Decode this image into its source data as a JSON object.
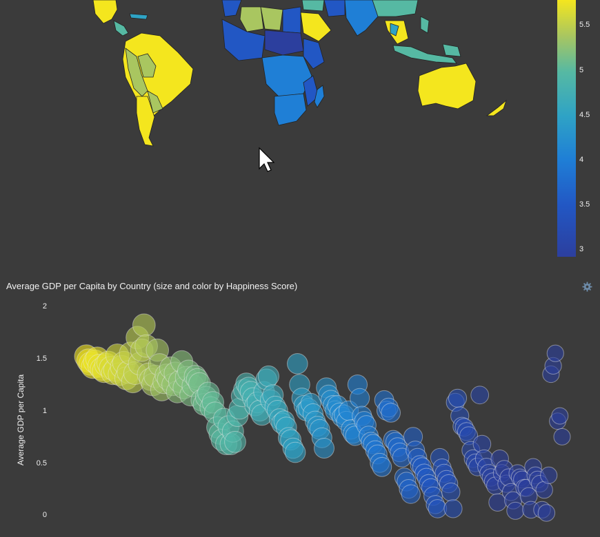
{
  "colorbar": {
    "ticks": [
      "5.5",
      "5",
      "4.5",
      "4",
      "3.5",
      "3"
    ],
    "tick_values": [
      5.5,
      5,
      4.5,
      4,
      3.5,
      3
    ],
    "range": [
      2.9,
      5.85
    ],
    "colors": [
      "#f4e61e",
      "#a9c660",
      "#56b9a3",
      "#2fa3c5",
      "#1f7fd6",
      "#2257c4",
      "#2c3f9e"
    ]
  },
  "scatter": {
    "title": "Average GDP per Capita by Country (size and color by Happiness Score)",
    "ylabel": "Average GDP per Capita",
    "yticks": [
      "2",
      "1.5",
      "1",
      "0.5",
      "0"
    ]
  },
  "icons": {
    "settings": "gear-icon",
    "cursor": "cursor-pointer-icon"
  },
  "chart_data": {
    "type": "scatter",
    "title": "Average GDP per Capita by Country (size and color by Happiness Score)",
    "xlabel": "",
    "ylabel": "Average GDP per Capita",
    "ylim": [
      0,
      2
    ],
    "y": [
      1.52,
      1.48,
      1.45,
      1.42,
      1.47,
      1.5,
      1.43,
      1.4,
      1.38,
      1.44,
      1.46,
      1.41,
      1.36,
      1.39,
      1.53,
      1.35,
      1.42,
      1.46,
      1.31,
      1.37,
      1.55,
      1.28,
      1.36,
      1.7,
      1.45,
      1.58,
      1.82,
      1.62,
      1.35,
      1.3,
      1.25,
      1.33,
      1.58,
      1.44,
      1.2,
      1.27,
      1.34,
      1.3,
      1.41,
      1.25,
      1.36,
      1.18,
      1.28,
      1.47,
      1.22,
      1.32,
      1.38,
      1.15,
      1.24,
      1.33,
      1.3,
      1.26,
      1.1,
      1.06,
      1.13,
      1.17,
      1.03,
      1.08,
      0.98,
      0.84,
      0.78,
      0.72,
      0.92,
      0.68,
      0.85,
      0.68,
      0.8,
      0.7,
      0.95,
      1.02,
      1.14,
      1.2,
      1.26,
      1.22,
      1.18,
      1.12,
      1.05,
      1.08,
      1.0,
      0.96,
      1.18,
      1.3,
      1.33,
      1.1,
      1.15,
      1.04,
      1.0,
      0.92,
      0.88,
      0.9,
      0.84,
      0.74,
      0.72,
      0.64,
      0.6,
      1.45,
      1.25,
      1.12,
      1.05,
      1.0,
      1.02,
      1.07,
      0.97,
      0.9,
      0.85,
      0.82,
      0.74,
      0.64,
      1.22,
      1.15,
      1.1,
      1.05,
      1.0,
      1.05,
      0.98,
      0.94,
      0.96,
      0.9,
      1.0,
      0.82,
      0.78,
      0.76,
      1.25,
      1.12,
      0.95,
      0.9,
      0.86,
      0.76,
      0.7,
      0.68,
      0.62,
      0.58,
      0.5,
      0.46,
      1.1,
      1.0,
      1.03,
      0.98,
      0.72,
      0.7,
      0.65,
      0.6,
      0.55,
      0.36,
      0.32,
      0.25,
      0.2,
      0.75,
      0.62,
      0.55,
      0.48,
      0.46,
      0.4,
      0.36,
      0.3,
      0.26,
      0.18,
      0.1,
      0.06,
      0.55,
      0.45,
      0.4,
      0.34,
      0.3,
      0.22,
      0.06,
      1.08,
      1.12,
      0.95,
      0.85,
      0.84,
      0.8,
      0.76,
      0.62,
      0.54,
      0.5,
      0.46,
      1.15,
      0.68,
      0.54,
      0.46,
      0.4,
      0.36,
      0.32,
      0.28,
      0.12,
      0.54,
      0.4,
      0.44,
      0.3,
      0.36,
      0.22,
      0.14,
      0.04,
      0.4,
      0.36,
      0.34,
      0.26,
      0.26,
      0.18,
      0.05,
      0.46,
      0.38,
      0.34,
      0.3,
      0.05,
      0.24,
      0.02,
      0.38,
      1.35,
      1.43,
      1.55,
      0.9,
      0.95,
      0.75
    ]
  }
}
